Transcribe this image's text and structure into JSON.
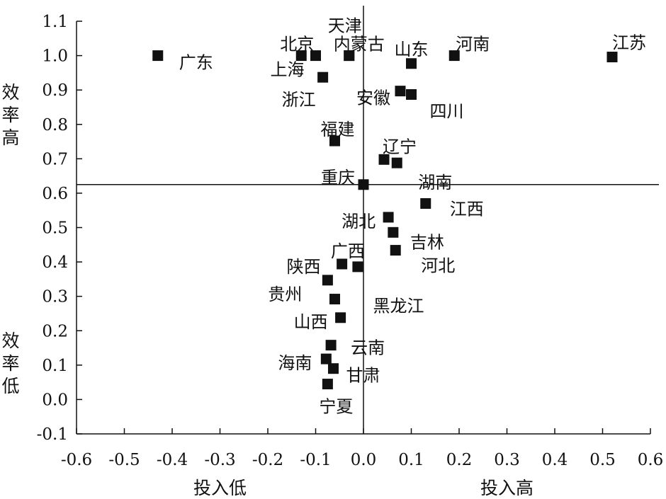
{
  "chart_data": {
    "type": "scatter",
    "xlim": [
      -0.6,
      0.6
    ],
    "ylim": [
      -0.1,
      1.1
    ],
    "x_ticks": [
      "-0.6",
      "-0.5",
      "-0.4",
      "-0.3",
      "-0.2",
      "-0.1",
      "0.0",
      "0.1",
      "0.2",
      "0.3",
      "0.4",
      "0.5",
      "0.6"
    ],
    "y_ticks": [
      "-0.1",
      "0.0",
      "0.1",
      "0.2",
      "0.3",
      "0.4",
      "0.5",
      "0.6",
      "0.7",
      "0.8",
      "0.9",
      "1.0",
      "1.1"
    ],
    "reference_lines": {
      "vertical_x": 0.0,
      "horizontal_y": 0.625
    },
    "grid": false,
    "marker_color": "#111111",
    "quadrant_labels": {
      "x_low": "投入低",
      "x_high": "投入高",
      "y_high": "效率高",
      "y_low": "效率低"
    },
    "points": [
      {
        "name": "广东",
        "x": -0.43,
        "y": 1.0
      },
      {
        "name": "北京",
        "x": -0.13,
        "y": 1.0
      },
      {
        "name": "上海",
        "x": -0.1,
        "y": 1.0
      },
      {
        "name": "天津",
        "x": -0.03,
        "y": 1.0
      },
      {
        "name": "内蒙古",
        "x": -0.03,
        "y": 1.0
      },
      {
        "name": "山东",
        "x": 0.1,
        "y": 0.977
      },
      {
        "name": "河南",
        "x": 0.19,
        "y": 1.0
      },
      {
        "name": "江苏",
        "x": 0.52,
        "y": 0.996
      },
      {
        "name": "浙江",
        "x": -0.085,
        "y": 0.937
      },
      {
        "name": "安徽",
        "x": 0.077,
        "y": 0.897
      },
      {
        "name": "四川",
        "x": 0.1,
        "y": 0.887
      },
      {
        "name": "福建",
        "x": -0.06,
        "y": 0.752
      },
      {
        "name": "辽宁",
        "x": 0.043,
        "y": 0.698
      },
      {
        "name": "湖南",
        "x": 0.07,
        "y": 0.688
      },
      {
        "name": "重庆",
        "x": 0.0,
        "y": 0.625
      },
      {
        "name": "江西",
        "x": 0.13,
        "y": 0.57
      },
      {
        "name": "湖北",
        "x": 0.052,
        "y": 0.53
      },
      {
        "name": "吉林",
        "x": 0.062,
        "y": 0.486
      },
      {
        "name": "河北",
        "x": 0.067,
        "y": 0.434
      },
      {
        "name": "广西",
        "x": -0.012,
        "y": 0.386
      },
      {
        "name": "陕西",
        "x": -0.045,
        "y": 0.394
      },
      {
        "name": "贵州",
        "x": -0.075,
        "y": 0.347
      },
      {
        "name": "黑龙江",
        "x": -0.06,
        "y": 0.292
      },
      {
        "name": "山西",
        "x": -0.048,
        "y": 0.238
      },
      {
        "name": "云南",
        "x": -0.068,
        "y": 0.158
      },
      {
        "name": "海南",
        "x": -0.078,
        "y": 0.118
      },
      {
        "name": "甘肃",
        "x": -0.063,
        "y": 0.09
      },
      {
        "name": "宁夏",
        "x": -0.075,
        "y": 0.045
      }
    ]
  }
}
